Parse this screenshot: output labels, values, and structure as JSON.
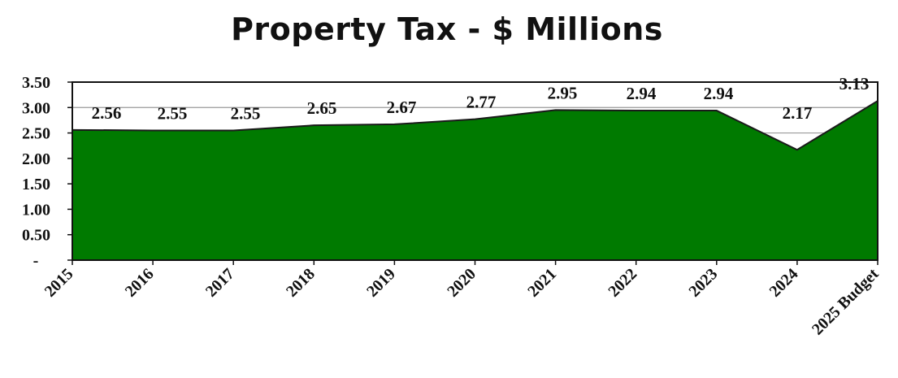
{
  "chart_data": {
    "type": "area",
    "title": "Property Tax - $ Millions",
    "xlabel": "",
    "ylabel": "",
    "categories": [
      "2015",
      "2016",
      "2017",
      "2018",
      "2019",
      "2020",
      "2021",
      "2022",
      "2023",
      "2024",
      "2025 Budget"
    ],
    "series": [
      {
        "values": [
          2.56,
          2.55,
          2.55,
          2.65,
          2.67,
          2.77,
          2.95,
          2.94,
          2.94,
          2.17,
          3.13
        ]
      }
    ],
    "data_labels": [
      "2.56",
      "2.55",
      "2.55",
      "2.65",
      "2.67",
      "2.77",
      "2.95",
      "2.94",
      "2.94",
      "2.17",
      "3.13"
    ],
    "ylim": [
      0,
      3.5
    ],
    "y_ticks": [
      0,
      0.5,
      1.0,
      1.5,
      2.0,
      2.5,
      3.0,
      3.5
    ],
    "y_tick_labels": [
      "-",
      "0.50",
      "1.00",
      "1.50",
      "2.00",
      "2.50",
      "3.00",
      "3.50"
    ],
    "grid": "horizontal",
    "legend": "none",
    "colors": {
      "fill": "#007a00",
      "line": "#1a1a1a",
      "grid": "#9a9a9a"
    }
  }
}
